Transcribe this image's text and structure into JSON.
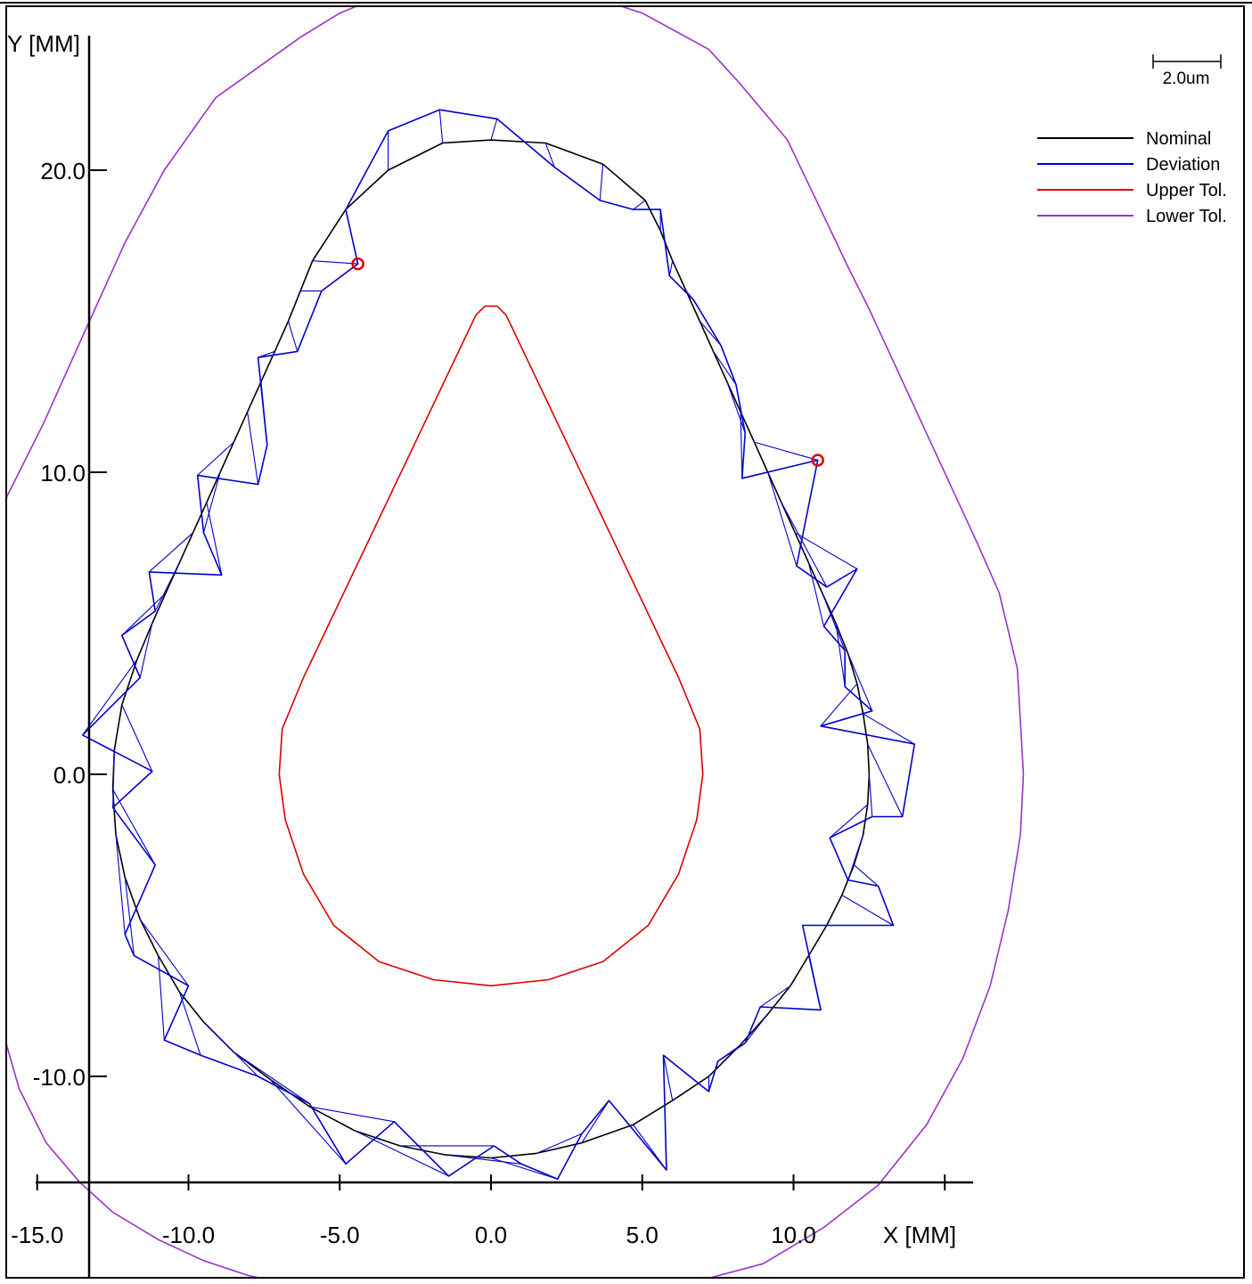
{
  "chart_data": {
    "type": "line",
    "xlabel": "X [MM]",
    "ylabel": "Y [MM]",
    "xlim": [
      -16.2,
      25.0
    ],
    "ylim": [
      -16.5,
      24.7
    ],
    "x_ticks": [
      -15.0,
      -10.0,
      -5.0,
      0.0,
      5.0,
      10.0
    ],
    "x_tick_labels": [
      "-15.0",
      "-10.0",
      "-5.0",
      "0.0",
      "5.0",
      "10.0"
    ],
    "y_ticks": [
      -10.0,
      0.0,
      10.0,
      20.0
    ],
    "y_tick_labels": [
      "-10.0",
      "0.0",
      "10.0",
      "20.0"
    ],
    "grid": false,
    "scale_bar": {
      "label": "2.0um"
    },
    "legend": {
      "placement": "top-right",
      "entries": [
        {
          "name": "Nominal",
          "color": "#000000"
        },
        {
          "name": "Deviation",
          "color": "#0000cc"
        },
        {
          "name": "Upper Tol.",
          "color": "#dd0000"
        },
        {
          "name": "Lower Tol.",
          "color": "#9933cc"
        }
      ]
    },
    "series": [
      {
        "name": "Nominal",
        "color": "#000000",
        "closed": true,
        "points": [
          [
            0.0,
            21.0
          ],
          [
            1.8,
            20.9
          ],
          [
            3.7,
            20.2
          ],
          [
            5.1,
            19.0
          ],
          [
            5.6,
            18.0
          ],
          [
            6.0,
            17.0
          ],
          [
            6.45,
            16.0
          ],
          [
            6.9,
            15.0
          ],
          [
            7.35,
            14.0
          ],
          [
            7.8,
            13.0
          ],
          [
            8.25,
            12.0
          ],
          [
            8.7,
            11.0
          ],
          [
            9.15,
            10.0
          ],
          [
            9.6,
            9.0
          ],
          [
            10.05,
            8.0
          ],
          [
            10.5,
            7.0
          ],
          [
            10.95,
            6.0
          ],
          [
            11.4,
            5.0
          ],
          [
            11.8,
            4.0
          ],
          [
            12.1,
            3.0
          ],
          [
            12.3,
            2.0
          ],
          [
            12.45,
            1.0
          ],
          [
            12.5,
            0.0
          ],
          [
            12.45,
            -1.0
          ],
          [
            12.3,
            -2.0
          ],
          [
            12.0,
            -3.0
          ],
          [
            11.6,
            -4.0
          ],
          [
            11.1,
            -5.0
          ],
          [
            10.5,
            -6.0
          ],
          [
            9.9,
            -7.0
          ],
          [
            9.1,
            -8.0
          ],
          [
            8.2,
            -9.0
          ],
          [
            7.2,
            -10.0
          ],
          [
            6.0,
            -10.8
          ],
          [
            4.7,
            -11.6
          ],
          [
            3.0,
            -12.2
          ],
          [
            1.5,
            -12.55
          ],
          [
            0.0,
            -12.7
          ],
          [
            -1.5,
            -12.6
          ],
          [
            -3.0,
            -12.3
          ],
          [
            -4.5,
            -11.8
          ],
          [
            -6.0,
            -11.0
          ],
          [
            -7.3,
            -10.1
          ],
          [
            -8.5,
            -9.2
          ],
          [
            -9.5,
            -8.2
          ],
          [
            -10.3,
            -7.2
          ],
          [
            -11.0,
            -6.0
          ],
          [
            -11.6,
            -4.8
          ],
          [
            -12.1,
            -3.4
          ],
          [
            -12.4,
            -2.0
          ],
          [
            -12.5,
            -0.5
          ],
          [
            -12.45,
            0.8
          ],
          [
            -12.2,
            2.3
          ],
          [
            -11.7,
            3.8
          ],
          [
            -11.2,
            5.0
          ],
          [
            -10.75,
            6.0
          ],
          [
            -10.3,
            7.0
          ],
          [
            -9.85,
            8.0
          ],
          [
            -9.4,
            9.0
          ],
          [
            -8.95,
            10.0
          ],
          [
            -8.5,
            11.0
          ],
          [
            -8.05,
            12.0
          ],
          [
            -7.6,
            13.0
          ],
          [
            -7.15,
            14.0
          ],
          [
            -6.7,
            15.0
          ],
          [
            -6.3,
            16.0
          ],
          [
            -5.9,
            17.0
          ],
          [
            -4.8,
            18.7
          ],
          [
            -3.4,
            20.0
          ],
          [
            -1.6,
            20.9
          ]
        ]
      },
      {
        "name": "Deviation",
        "color": "#0000cc",
        "closed": true,
        "points": [
          [
            0.2,
            21.7
          ],
          [
            2.1,
            20.1
          ],
          [
            3.6,
            19.0
          ],
          [
            4.7,
            18.7
          ],
          [
            5.6,
            18.7
          ],
          [
            5.9,
            16.5
          ],
          [
            6.7,
            15.7
          ],
          [
            7.6,
            14.2
          ],
          [
            8.1,
            12.9
          ],
          [
            8.4,
            11.3
          ],
          [
            8.3,
            9.8
          ],
          [
            10.8,
            10.4
          ],
          [
            10.1,
            6.9
          ],
          [
            11.1,
            6.2
          ],
          [
            12.1,
            6.8
          ],
          [
            11.0,
            4.9
          ],
          [
            11.7,
            4.1
          ],
          [
            11.7,
            2.9
          ],
          [
            12.6,
            2.1
          ],
          [
            10.9,
            1.6
          ],
          [
            14.0,
            1.0
          ],
          [
            13.6,
            -1.4
          ],
          [
            12.6,
            -1.4
          ],
          [
            11.2,
            -2.1
          ],
          [
            11.8,
            -3.5
          ],
          [
            12.8,
            -3.7
          ],
          [
            13.3,
            -5.0
          ],
          [
            10.3,
            -5.0
          ],
          [
            10.9,
            -7.8
          ],
          [
            8.9,
            -7.7
          ],
          [
            8.4,
            -8.9
          ],
          [
            7.5,
            -9.5
          ],
          [
            7.2,
            -10.5
          ],
          [
            5.7,
            -9.3
          ],
          [
            5.8,
            -13.1
          ],
          [
            3.9,
            -10.8
          ],
          [
            3.0,
            -11.9
          ],
          [
            2.2,
            -13.4
          ],
          [
            1.0,
            -12.9
          ],
          [
            0.1,
            -12.3
          ],
          [
            -1.4,
            -13.3
          ],
          [
            -3.2,
            -11.5
          ],
          [
            -4.8,
            -12.9
          ],
          [
            -6.0,
            -10.9
          ],
          [
            -7.7,
            -10.0
          ],
          [
            -9.6,
            -9.3
          ],
          [
            -10.8,
            -8.8
          ],
          [
            -10.0,
            -7.0
          ],
          [
            -11.8,
            -6.0
          ],
          [
            -12.1,
            -5.3
          ],
          [
            -11.1,
            -3.0
          ],
          [
            -12.5,
            -1.1
          ],
          [
            -11.2,
            0.1
          ],
          [
            -13.5,
            1.3
          ],
          [
            -11.6,
            3.2
          ],
          [
            -12.2,
            4.6
          ],
          [
            -11.1,
            5.4
          ],
          [
            -11.3,
            6.7
          ],
          [
            -8.9,
            6.6
          ],
          [
            -9.5,
            8.0
          ],
          [
            -9.7,
            9.9
          ],
          [
            -7.7,
            9.6
          ],
          [
            -7.4,
            10.9
          ],
          [
            -7.7,
            13.8
          ],
          [
            -6.4,
            14.0
          ],
          [
            -5.6,
            16.0
          ],
          [
            -4.4,
            16.9
          ],
          [
            -4.8,
            18.7
          ],
          [
            -3.4,
            21.3
          ],
          [
            -1.7,
            22.0
          ]
        ]
      },
      {
        "name": "Upper Tol.",
        "color": "#dd0000",
        "closed": true,
        "points": [
          [
            0.0,
            15.5
          ],
          [
            0.2,
            15.5
          ],
          [
            0.5,
            15.2
          ],
          [
            6.2,
            3.2
          ],
          [
            6.9,
            1.5
          ],
          [
            7.0,
            0.0
          ],
          [
            6.8,
            -1.5
          ],
          [
            6.2,
            -3.3
          ],
          [
            5.2,
            -5.0
          ],
          [
            3.7,
            -6.2
          ],
          [
            1.9,
            -6.8
          ],
          [
            0.0,
            -7.0
          ],
          [
            -1.9,
            -6.8
          ],
          [
            -3.7,
            -6.2
          ],
          [
            -5.2,
            -5.0
          ],
          [
            -6.2,
            -3.3
          ],
          [
            -6.8,
            -1.5
          ],
          [
            -7.0,
            0.0
          ],
          [
            -6.9,
            1.5
          ],
          [
            -6.2,
            3.2
          ],
          [
            -0.5,
            15.2
          ],
          [
            -0.2,
            15.5
          ]
        ]
      },
      {
        "name": "Lower Tol.",
        "color": "#9933cc",
        "closed": false,
        "points": [
          [
            -16.2,
            -8.0
          ],
          [
            -16.0,
            -9.0
          ],
          [
            -15.6,
            -10.4
          ],
          [
            -14.7,
            -12.2
          ],
          [
            -13.6,
            -13.5
          ],
          [
            -12.5,
            -14.5
          ],
          [
            -11.0,
            -15.4
          ],
          [
            -9.5,
            -16.1
          ],
          [
            -8.0,
            -16.6
          ],
          [
            -6.0,
            -17.0
          ],
          [
            -3.0,
            -17.3
          ],
          [
            0.0,
            -17.5
          ],
          [
            3.0,
            -17.3
          ],
          [
            6.0,
            -17.0
          ],
          [
            9.0,
            -16.2
          ],
          [
            11.0,
            -15.0
          ],
          [
            12.8,
            -13.6
          ],
          [
            14.4,
            -11.6
          ],
          [
            15.6,
            -9.4
          ],
          [
            16.5,
            -7.0
          ],
          [
            17.1,
            -4.5
          ],
          [
            17.5,
            -2.0
          ],
          [
            17.6,
            0.0
          ],
          [
            17.4,
            3.5
          ],
          [
            16.8,
            6.0
          ],
          [
            16.1,
            7.6
          ],
          [
            14.3,
            11.5
          ],
          [
            12.5,
            15.4
          ],
          [
            11.8,
            16.8
          ],
          [
            10.8,
            18.9
          ],
          [
            9.8,
            21.0
          ],
          [
            8.2,
            22.9
          ],
          [
            7.2,
            24.0
          ],
          [
            5.0,
            25.2
          ],
          [
            1.6,
            26.3
          ],
          [
            0.0,
            26.6
          ],
          [
            -1.6,
            26.4
          ],
          [
            -3.3,
            25.9
          ],
          [
            -5.0,
            25.2
          ],
          [
            -6.3,
            24.4
          ],
          [
            -9.1,
            22.4
          ],
          [
            -10.8,
            20.0
          ],
          [
            -12.1,
            17.6
          ],
          [
            -13.5,
            14.5
          ],
          [
            -14.8,
            11.6
          ],
          [
            -16.0,
            9.2
          ],
          [
            -16.2,
            8.1
          ]
        ]
      }
    ],
    "markers": [
      {
        "x": -4.4,
        "y": 16.9,
        "color": "#dd0000"
      },
      {
        "x": 10.8,
        "y": 10.4,
        "color": "#dd0000"
      }
    ]
  }
}
